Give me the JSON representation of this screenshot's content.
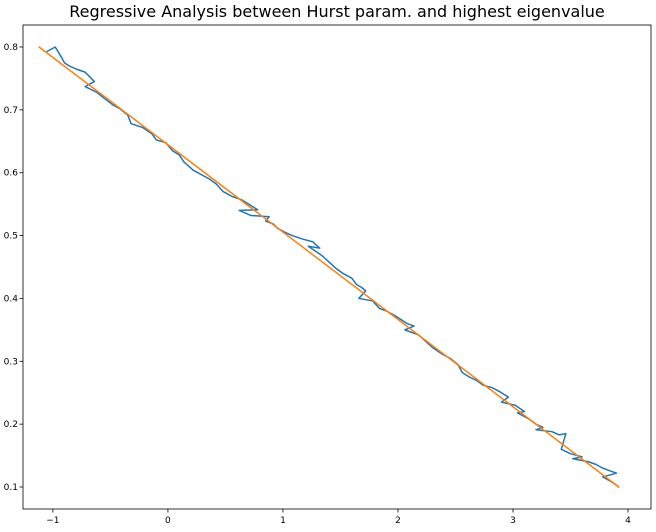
{
  "chart_data": {
    "type": "line",
    "title": "Regressive Analysis between Hurst param. and highest eigenvalue",
    "xlabel": "",
    "ylabel": "",
    "xlim": [
      -1.26,
      4.2
    ],
    "ylim": [
      0.065,
      0.835
    ],
    "grid": false,
    "x_ticks": [
      -1,
      0,
      1,
      2,
      3,
      4
    ],
    "y_ticks": [
      0.1,
      0.2,
      0.3,
      0.4,
      0.5,
      0.6,
      0.7,
      0.8
    ],
    "series": [
      {
        "color": "#1f77b4",
        "x": [
          -1.05,
          -0.98,
          -0.92,
          -0.9,
          -0.86,
          -0.8,
          -0.72,
          -0.64,
          -0.72,
          -0.62,
          -0.55,
          -0.48,
          -0.42,
          -0.35,
          -0.32,
          -0.22,
          -0.14,
          -0.1,
          -0.02,
          0.04,
          0.1,
          0.14,
          0.22,
          0.26,
          0.36,
          0.42,
          0.48,
          0.52,
          0.56,
          0.64,
          0.72,
          0.78,
          0.62,
          0.72,
          0.88,
          0.85,
          0.92,
          0.95,
          1.02,
          1.08,
          1.16,
          1.26,
          1.32,
          1.22,
          1.34,
          1.4,
          1.46,
          1.52,
          1.6,
          1.64,
          1.68,
          1.72,
          1.66,
          1.78,
          1.84,
          1.9,
          1.98,
          2.08,
          2.14,
          2.06,
          2.18,
          2.24,
          2.3,
          2.38,
          2.46,
          2.52,
          2.56,
          2.62,
          2.68,
          2.74,
          2.82,
          2.9,
          2.96,
          2.9,
          3.02,
          3.1,
          3.04,
          3.14,
          3.2,
          3.26,
          3.2,
          3.34,
          3.4,
          3.46,
          3.42,
          3.5,
          3.56,
          3.6,
          3.52,
          3.66,
          3.72,
          3.78,
          3.84,
          3.9,
          3.78,
          3.86,
          3.92
        ],
        "y": [
          0.793,
          0.8,
          0.782,
          0.775,
          0.77,
          0.765,
          0.76,
          0.745,
          0.737,
          0.728,
          0.718,
          0.708,
          0.702,
          0.692,
          0.678,
          0.672,
          0.662,
          0.652,
          0.648,
          0.635,
          0.628,
          0.617,
          0.604,
          0.6,
          0.59,
          0.582,
          0.57,
          0.566,
          0.562,
          0.557,
          0.548,
          0.541,
          0.54,
          0.532,
          0.53,
          0.523,
          0.518,
          0.512,
          0.505,
          0.5,
          0.495,
          0.49,
          0.48,
          0.483,
          0.468,
          0.458,
          0.448,
          0.44,
          0.432,
          0.422,
          0.418,
          0.412,
          0.4,
          0.396,
          0.384,
          0.38,
          0.372,
          0.36,
          0.356,
          0.35,
          0.342,
          0.332,
          0.322,
          0.312,
          0.304,
          0.295,
          0.282,
          0.275,
          0.27,
          0.262,
          0.258,
          0.25,
          0.243,
          0.235,
          0.23,
          0.22,
          0.218,
          0.208,
          0.2,
          0.195,
          0.191,
          0.188,
          0.183,
          0.185,
          0.16,
          0.153,
          0.15,
          0.148,
          0.145,
          0.14,
          0.136,
          0.13,
          0.126,
          0.122,
          0.116,
          0.108,
          0.1
        ]
      },
      {
        "color": "#ff7f0e",
        "x": [
          -1.12,
          3.92
        ],
        "y": [
          0.8,
          0.1
        ]
      }
    ]
  }
}
